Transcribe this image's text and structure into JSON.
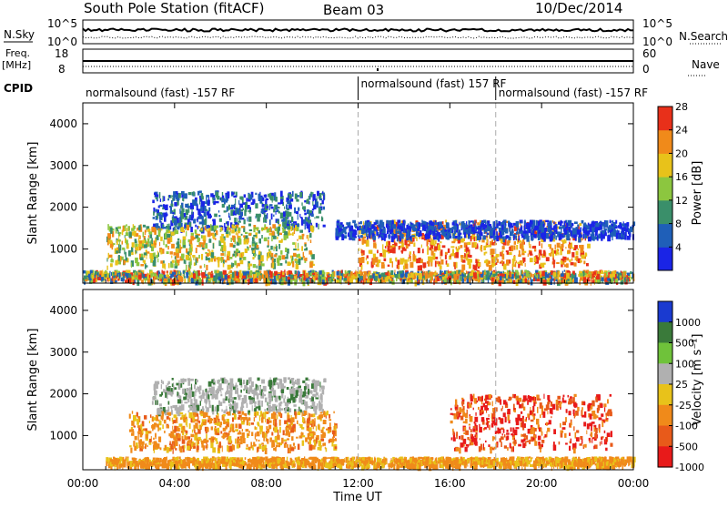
{
  "header": {
    "station": "South Pole Station (fitACF)",
    "beam": "Beam 03",
    "date": "10/Dec/2014"
  },
  "top_panels": {
    "nsky_label": "N.Sky",
    "nsky_ticks": [
      "10^5",
      "10^0"
    ],
    "nsearch_label": "N.Search",
    "nsearch_ticks": [
      "10^5",
      "10^0"
    ],
    "freq_label": "Freq.",
    "freq_unit": "[MHz]",
    "freq_ticks": [
      "18",
      "8"
    ],
    "nave_label": "Nave",
    "nave_ticks": [
      "60",
      "0"
    ],
    "cpid_label": "CPID",
    "cpid_segments": [
      {
        "label": "normalsound (fast) -157 RF",
        "start_h": 0,
        "end_h": 12
      },
      {
        "label": "normalsound (fast) 157 RF",
        "start_h": 12,
        "end_h": 18
      },
      {
        "label": "normalsound (fast) -157 RF",
        "start_h": 18,
        "end_h": 24
      }
    ]
  },
  "chart_data": [
    {
      "type": "heatmap",
      "name": "Power",
      "ylabel": "Slant Range [km]",
      "xlim": [
        0,
        24
      ],
      "ylim": [
        180,
        4500
      ],
      "yticks": [
        1000,
        2000,
        3000,
        4000
      ],
      "colorbar_label": "Power [dB]",
      "colorbar_ticks": [
        "4",
        "8",
        "12",
        "16",
        "20",
        "24",
        "28"
      ],
      "colorbar_colors": [
        "#1a24e6",
        "#1f5fb8",
        "#3a8f6a",
        "#8cc63f",
        "#e8c21a",
        "#f08a1a",
        "#e8301a"
      ],
      "features": [
        {
          "region": "near-range band",
          "t_start": 0,
          "t_end": 24,
          "range_km": [
            250,
            500
          ],
          "level": "mixed 8-28 dB"
        },
        {
          "region": "high-range arcs",
          "t_start": 3,
          "t_end": 10.5,
          "range_km": [
            1500,
            2400
          ],
          "level": "4-12 dB"
        },
        {
          "region": "mid-range streaks",
          "t_start": 1,
          "t_end": 10,
          "range_km": [
            600,
            1600
          ],
          "level": "12-24 dB"
        },
        {
          "region": "night echoes",
          "t_start": 12,
          "t_end": 22,
          "range_km": [
            600,
            1700
          ],
          "level": "16-28 dB"
        },
        {
          "region": "far-range band",
          "t_start": 11,
          "t_end": 24,
          "range_km": [
            1300,
            1700
          ],
          "level": "4-8 dB"
        }
      ]
    },
    {
      "type": "heatmap",
      "name": "Velocity",
      "ylabel": "Slant Range [km]",
      "xlabel": "Time UT",
      "xlim": [
        0,
        24
      ],
      "ylim": [
        180,
        4500
      ],
      "yticks": [
        1000,
        2000,
        3000,
        4000
      ],
      "xticks": [
        "00:00",
        "04:00",
        "08:00",
        "12:00",
        "16:00",
        "20:00",
        "00:00"
      ],
      "colorbar_label": "Velocity [m s⁻¹]",
      "colorbar_ticks": [
        "1000",
        "500",
        "100",
        "25",
        "-25",
        "-100",
        "-500",
        "-1000"
      ],
      "colorbar_colors": [
        "#1a3ad0",
        "#3a7a3a",
        "#6fc23a",
        "#b0b0b0",
        "#e8c21a",
        "#f08a1a",
        "#e85a1a",
        "#e81a1a"
      ],
      "features": [
        {
          "region": "ground scatter",
          "t_start": 3,
          "t_end": 10.5,
          "range_km": [
            1600,
            2400
          ],
          "velocity": "-25 to 25 m/s"
        },
        {
          "region": "mid-range streaks",
          "t_start": 2,
          "t_end": 11,
          "range_km": [
            700,
            1600
          ],
          "velocity": "-100 to -500 m/s"
        },
        {
          "region": "night echoes",
          "t_start": 16,
          "t_end": 23,
          "range_km": [
            700,
            2000
          ],
          "velocity": "-500 to -1000 m/s"
        },
        {
          "region": "near-range band",
          "t_start": 1,
          "t_end": 24,
          "range_km": [
            300,
            500
          ],
          "velocity": "-100 m/s"
        }
      ]
    }
  ],
  "lines": {
    "cpid_change_hours": [
      12,
      18
    ]
  }
}
